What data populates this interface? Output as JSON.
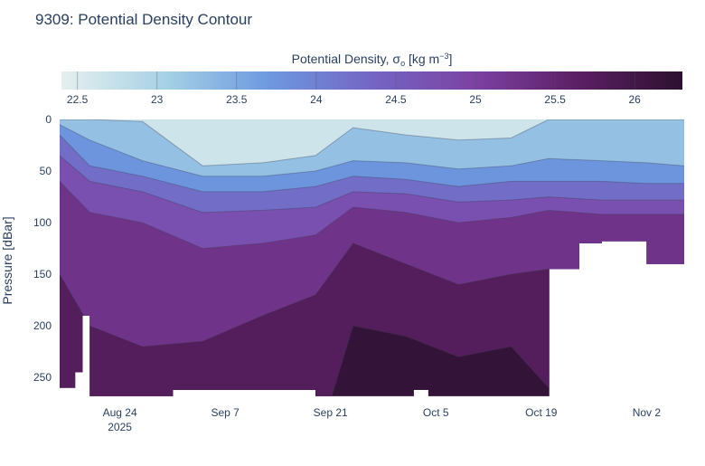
{
  "chart_data": {
    "type": "heatmap",
    "title": "9309: Potential Density Contour",
    "colorbar": {
      "title_prefix": "Potential Density, σ",
      "title_sub": "o",
      "title_suffix": " [kg m",
      "title_sup": "−3",
      "title_end": "]",
      "range": [
        22.4,
        26.3
      ],
      "ticks": [
        22.5,
        23,
        23.5,
        24,
        24.5,
        25,
        25.5,
        26
      ],
      "tick_labels": [
        "22.5",
        "23",
        "23.5",
        "24",
        "24.5",
        "25",
        "25.5",
        "26"
      ],
      "colors": [
        "#e6efef",
        "#a6d2e5",
        "#6d99e0",
        "#7366c4",
        "#7c41a2",
        "#5b1f63",
        "#2c1130"
      ]
    },
    "xaxis": {
      "type": "date",
      "range": [
        "2025-08-16",
        "2025-11-07"
      ],
      "ticks": [
        "2025-08-24",
        "2025-09-07",
        "2025-09-21",
        "2025-10-05",
        "2025-10-19",
        "2025-11-02"
      ],
      "tick_labels": [
        "Aug 24",
        "Sep 7",
        "Sep 21",
        "Oct 5",
        "Oct 19",
        "Nov 2"
      ],
      "year_label": "2025"
    },
    "yaxis": {
      "title": "Pressure [dBar]",
      "range": [
        0,
        270
      ],
      "reversed": true,
      "ticks": [
        0,
        50,
        100,
        150,
        200,
        250
      ],
      "tick_labels": [
        "0",
        "50",
        "100",
        "150",
        "200",
        "250"
      ]
    },
    "depth_coverage_dbar": [
      {
        "from": "2025-08-16",
        "to": "2025-08-18",
        "max_pressure": 260
      },
      {
        "from": "2025-08-18",
        "to": "2025-08-19",
        "max_pressure": 245
      },
      {
        "from": "2025-08-19",
        "to": "2025-08-20",
        "max_pressure": 190
      },
      {
        "from": "2025-08-20",
        "to": "2025-08-31",
        "max_pressure": 268
      },
      {
        "from": "2025-08-31",
        "to": "2025-09-19",
        "max_pressure": 262
      },
      {
        "from": "2025-09-19",
        "to": "2025-10-02",
        "max_pressure": 268
      },
      {
        "from": "2025-10-02",
        "to": "2025-10-04",
        "max_pressure": 262
      },
      {
        "from": "2025-10-04",
        "to": "2025-10-20",
        "max_pressure": 268
      },
      {
        "from": "2025-10-20",
        "to": "2025-10-24",
        "max_pressure": 145
      },
      {
        "from": "2025-10-24",
        "to": "2025-10-27",
        "max_pressure": 120
      },
      {
        "from": "2025-10-27",
        "to": "2025-11-02",
        "max_pressure": 118
      },
      {
        "from": "2025-11-02",
        "to": "2025-11-07",
        "max_pressure": 140
      }
    ],
    "isopycnal_depths_dbar": {
      "dates": [
        "2025-08-16",
        "2025-08-20",
        "2025-08-27",
        "2025-09-04",
        "2025-09-12",
        "2025-09-19",
        "2025-09-24",
        "2025-10-01",
        "2025-10-08",
        "2025-10-15",
        "2025-10-20",
        "2025-10-27",
        "2025-11-02",
        "2025-11-07"
      ],
      "levels": [
        {
          "sigma": 23.0,
          "depths": [
            0,
            0,
            2,
            45,
            42,
            35,
            8,
            15,
            20,
            18,
            0,
            0,
            0,
            0
          ]
        },
        {
          "sigma": 23.5,
          "depths": [
            5,
            20,
            40,
            55,
            55,
            50,
            40,
            42,
            48,
            45,
            38,
            40,
            42,
            45
          ]
        },
        {
          "sigma": 24.0,
          "depths": [
            15,
            45,
            55,
            70,
            70,
            65,
            55,
            58,
            65,
            60,
            60,
            60,
            62,
            62
          ]
        },
        {
          "sigma": 24.5,
          "depths": [
            35,
            60,
            70,
            90,
            88,
            85,
            70,
            72,
            80,
            78,
            75,
            78,
            78,
            78
          ]
        },
        {
          "sigma": 25.0,
          "depths": [
            60,
            90,
            100,
            125,
            120,
            112,
            85,
            90,
            100,
            95,
            88,
            92,
            92,
            92
          ]
        },
        {
          "sigma": 25.5,
          "depths": [
            150,
            200,
            220,
            215,
            190,
            170,
            120,
            140,
            160,
            150,
            145,
            150,
            150,
            150
          ]
        },
        {
          "sigma": 26.0,
          "depths": [
            320,
            320,
            320,
            320,
            320,
            320,
            200,
            210,
            230,
            220,
            260,
            260,
            260,
            260
          ]
        }
      ]
    }
  }
}
